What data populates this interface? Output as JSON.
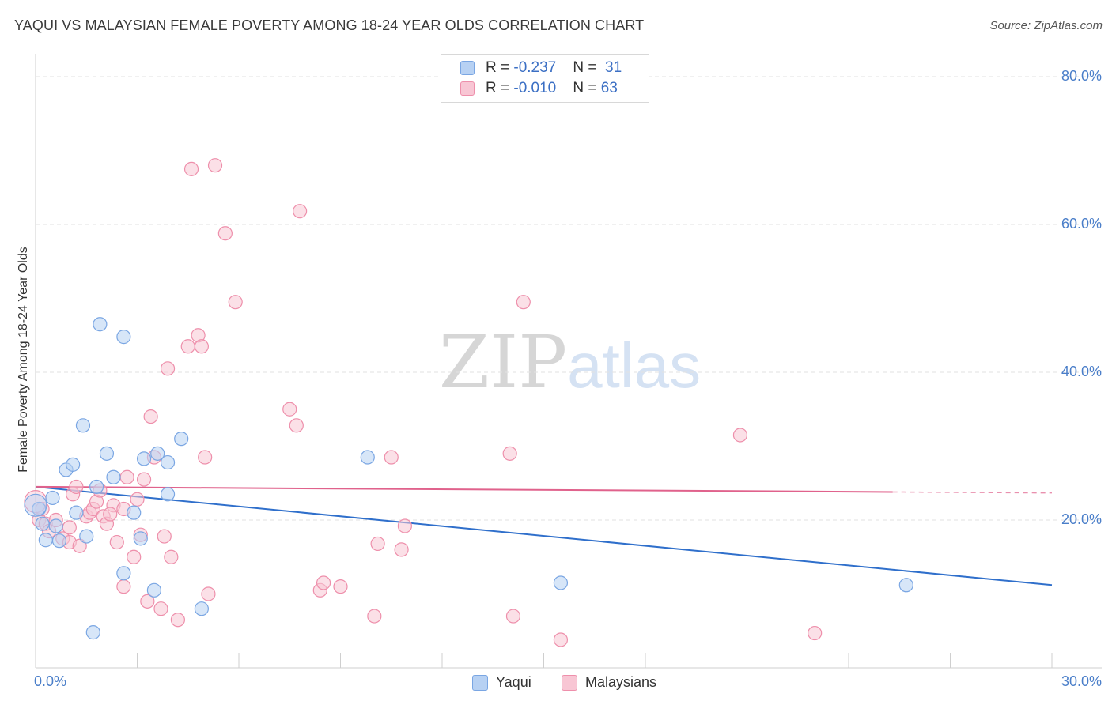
{
  "title": "YAQUI VS MALAYSIAN FEMALE POVERTY AMONG 18-24 YEAR OLDS CORRELATION CHART",
  "source": "Source: ZipAtlas.com",
  "watermark": {
    "zip": "ZIP",
    "atlas": "atlas"
  },
  "colors": {
    "yaqui_fill": "#b7d1f3",
    "yaqui_stroke": "#7aa6e3",
    "yaqui_line": "#2f6fcb",
    "malay_fill": "#f8c6d4",
    "malay_stroke": "#ee8fab",
    "malay_line": "#e0628c",
    "axis_label": "#4a7ec9",
    "grid": "#e2e2e2"
  },
  "legend_top": [
    {
      "r_label": "R = ",
      "r_value": "-0.237",
      "n_label": "N = ",
      "n_value": "31",
      "series": "yaqui"
    },
    {
      "r_label": "R = ",
      "r_value": "-0.010",
      "n_label": "N = ",
      "n_value": "63",
      "series": "malay"
    }
  ],
  "legend_bottom": [
    {
      "label": "Yaqui",
      "series": "yaqui"
    },
    {
      "label": "Malaysians",
      "series": "malay"
    }
  ],
  "chart_data": {
    "type": "scatter",
    "title": "YAQUI VS MALAYSIAN FEMALE POVERTY AMONG 18-24 YEAR OLDS CORRELATION CHART",
    "xlabel": "",
    "ylabel": "Female Poverty Among 18-24 Year Olds",
    "xlim": [
      0,
      30
    ],
    "ylim": [
      0,
      80
    ],
    "x_tick_labels": [
      "0.0%",
      "30.0%"
    ],
    "y_ticks": [
      20,
      40,
      60,
      80
    ],
    "y_tick_labels": [
      "20.0%",
      "40.0%",
      "60.0%",
      "80.0%"
    ],
    "grid": true,
    "legend": "top-center",
    "series": [
      {
        "name": "Yaqui",
        "key": "yaqui",
        "trend": {
          "x": [
            0,
            30
          ],
          "y": [
            24.5,
            11.2
          ]
        },
        "points": [
          [
            0.1,
            21.5
          ],
          [
            0.2,
            19.5
          ],
          [
            0.3,
            17.3
          ],
          [
            0.5,
            23.0
          ],
          [
            0.6,
            19.2
          ],
          [
            0.7,
            17.2
          ],
          [
            0.9,
            26.8
          ],
          [
            1.1,
            27.5
          ],
          [
            1.2,
            21.0
          ],
          [
            1.4,
            32.8
          ],
          [
            1.5,
            17.8
          ],
          [
            1.7,
            4.8
          ],
          [
            1.8,
            24.5
          ],
          [
            1.9,
            46.5
          ],
          [
            2.1,
            29.0
          ],
          [
            2.3,
            25.8
          ],
          [
            2.6,
            12.8
          ],
          [
            2.6,
            44.8
          ],
          [
            2.9,
            21.0
          ],
          [
            3.1,
            17.5
          ],
          [
            3.2,
            28.3
          ],
          [
            3.5,
            10.5
          ],
          [
            3.6,
            29.0
          ],
          [
            3.9,
            27.8
          ],
          [
            3.9,
            23.5
          ],
          [
            4.3,
            31.0
          ],
          [
            4.9,
            8.0
          ],
          [
            9.8,
            28.5
          ],
          [
            15.5,
            11.5
          ],
          [
            25.7,
            11.2
          ],
          [
            0.0,
            22.0
          ]
        ]
      },
      {
        "name": "Malaysians",
        "key": "malay",
        "trend": {
          "x": [
            0,
            25.3
          ],
          "y": [
            24.5,
            23.8
          ],
          "dash_to_x": 30
        },
        "points": [
          [
            0.1,
            20.0
          ],
          [
            0.2,
            21.5
          ],
          [
            0.3,
            19.5
          ],
          [
            0.4,
            18.5
          ],
          [
            0.6,
            20.0
          ],
          [
            0.8,
            17.5
          ],
          [
            1.0,
            17.0
          ],
          [
            1.0,
            19.0
          ],
          [
            1.1,
            23.5
          ],
          [
            1.2,
            24.5
          ],
          [
            1.3,
            16.5
          ],
          [
            1.5,
            20.5
          ],
          [
            1.6,
            21.0
          ],
          [
            1.7,
            21.5
          ],
          [
            1.8,
            22.5
          ],
          [
            1.9,
            24.0
          ],
          [
            2.0,
            20.5
          ],
          [
            2.1,
            19.5
          ],
          [
            2.3,
            22.0
          ],
          [
            2.4,
            17.0
          ],
          [
            2.6,
            21.5
          ],
          [
            2.6,
            11.0
          ],
          [
            2.7,
            25.8
          ],
          [
            2.9,
            15.0
          ],
          [
            3.0,
            22.8
          ],
          [
            3.1,
            18.0
          ],
          [
            3.2,
            25.5
          ],
          [
            3.3,
            9.0
          ],
          [
            3.4,
            34.0
          ],
          [
            3.5,
            28.5
          ],
          [
            3.7,
            8.0
          ],
          [
            3.8,
            17.8
          ],
          [
            3.9,
            40.5
          ],
          [
            4.0,
            15.0
          ],
          [
            4.2,
            6.5
          ],
          [
            4.5,
            43.5
          ],
          [
            4.6,
            67.5
          ],
          [
            4.8,
            45.0
          ],
          [
            4.9,
            43.5
          ],
          [
            5.0,
            28.5
          ],
          [
            5.1,
            10.0
          ],
          [
            5.3,
            68.0
          ],
          [
            5.6,
            58.8
          ],
          [
            5.9,
            49.5
          ],
          [
            7.5,
            35.0
          ],
          [
            7.7,
            32.8
          ],
          [
            7.8,
            61.8
          ],
          [
            8.4,
            10.5
          ],
          [
            8.5,
            11.5
          ],
          [
            9.0,
            11.0
          ],
          [
            10.0,
            7.0
          ],
          [
            10.1,
            16.8
          ],
          [
            10.5,
            28.5
          ],
          [
            10.8,
            16.0
          ],
          [
            10.9,
            19.2
          ],
          [
            14.0,
            29.0
          ],
          [
            14.1,
            7.0
          ],
          [
            14.4,
            49.5
          ],
          [
            15.5,
            3.8
          ],
          [
            20.8,
            31.5
          ],
          [
            23.0,
            4.7
          ],
          [
            0.0,
            22.5
          ],
          [
            2.2,
            20.8
          ]
        ]
      }
    ]
  }
}
